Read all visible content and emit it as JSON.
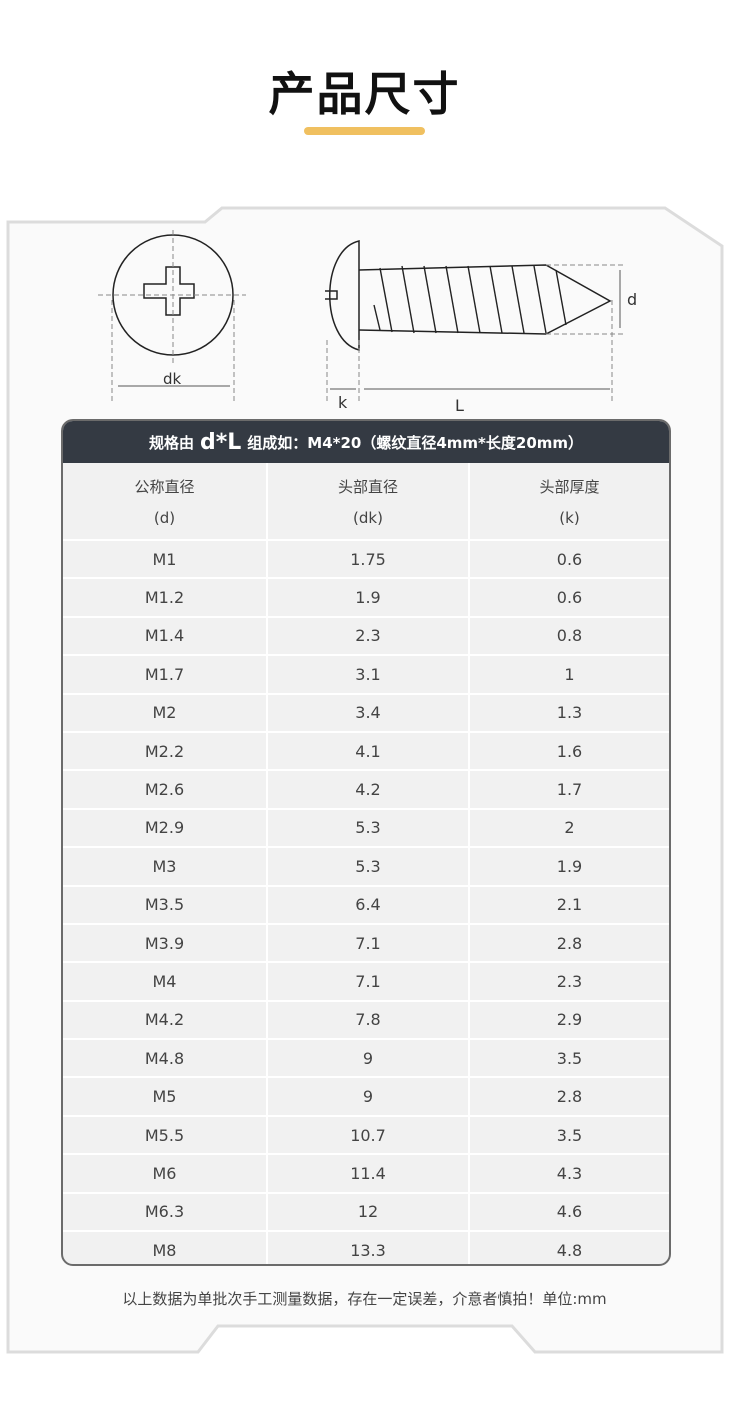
{
  "title": "产品尺寸",
  "diagram": {
    "labels": {
      "dk": "dk",
      "k": "k",
      "L": "L",
      "d": "d"
    }
  },
  "table": {
    "caption_prefix": "规格由",
    "caption_formula": "d*L",
    "caption_suffix": "组成如：M4*20（螺纹直径4mm*长度20mm）",
    "headers": [
      {
        "name": "公称直径",
        "symbol": "(d)"
      },
      {
        "name": "头部直径",
        "symbol": "(dk)"
      },
      {
        "name": "头部厚度",
        "symbol": "(k)"
      }
    ],
    "rows": [
      [
        "M1",
        "1.75",
        "0.6"
      ],
      [
        "M1.2",
        "1.9",
        "0.6"
      ],
      [
        "M1.4",
        "2.3",
        "0.8"
      ],
      [
        "M1.7",
        "3.1",
        "1"
      ],
      [
        "M2",
        "3.4",
        "1.3"
      ],
      [
        "M2.2",
        "4.1",
        "1.6"
      ],
      [
        "M2.6",
        "4.2",
        "1.7"
      ],
      [
        "M2.9",
        "5.3",
        "2"
      ],
      [
        "M3",
        "5.3",
        "1.9"
      ],
      [
        "M3.5",
        "6.4",
        "2.1"
      ],
      [
        "M3.9",
        "7.1",
        "2.8"
      ],
      [
        "M4",
        "7.1",
        "2.3"
      ],
      [
        "M4.2",
        "7.8",
        "2.9"
      ],
      [
        "M4.8",
        "9",
        "3.5"
      ],
      [
        "M5",
        "9",
        "2.8"
      ],
      [
        "M5.5",
        "10.7",
        "3.5"
      ],
      [
        "M6",
        "11.4",
        "4.3"
      ],
      [
        "M6.3",
        "12",
        "4.6"
      ],
      [
        "M8",
        "13.3",
        "4.8"
      ]
    ]
  },
  "note": "以上数据为单批次手工测量数据，存在一定误差，介意者慎拍！单位:mm",
  "colors": {
    "accent": "#f0c060",
    "header_bg": "#343a43",
    "row_bg": "#f1f1f1"
  }
}
